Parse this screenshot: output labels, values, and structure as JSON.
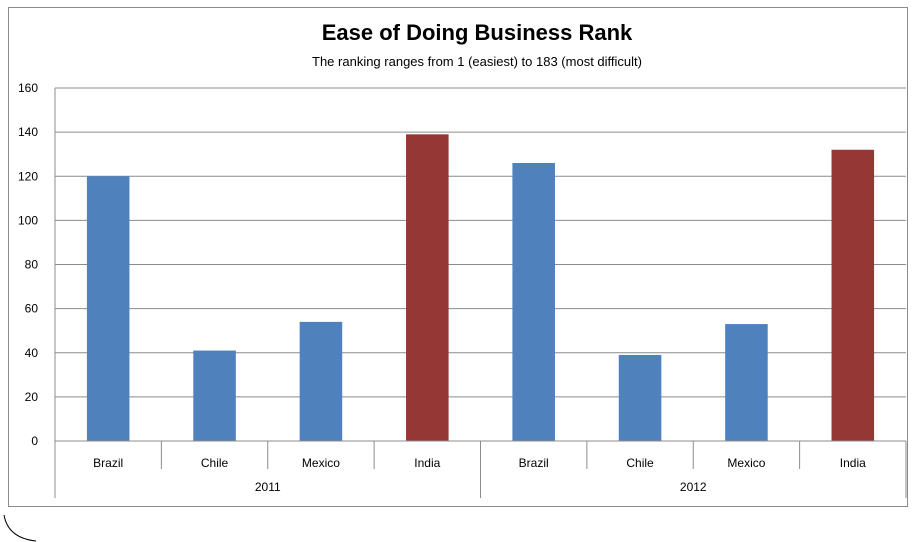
{
  "chart_data": {
    "type": "bar",
    "title": "Ease of Doing Business Rank",
    "subtitle": "The ranking ranges from 1 (easiest) to 183 (most difficult)",
    "xlabel": "",
    "ylabel": "",
    "ylim": [
      0,
      160
    ],
    "y_ticks": [
      "0",
      "20",
      "40",
      "60",
      "80",
      "100",
      "120",
      "140",
      "160"
    ],
    "grid": true,
    "legend": "none",
    "groups": [
      {
        "label": "2011",
        "categories": [
          "Brazil",
          "Chile",
          "Mexico",
          "India"
        ],
        "values": [
          120,
          41,
          54,
          139
        ]
      },
      {
        "label": "2012",
        "categories": [
          "Brazil",
          "Chile",
          "Mexico",
          "India"
        ],
        "values": [
          126,
          39,
          53,
          132
        ]
      }
    ],
    "colors": {
      "default": "#4f81bd",
      "highlight": "#953735",
      "highlight_category": "India"
    }
  }
}
